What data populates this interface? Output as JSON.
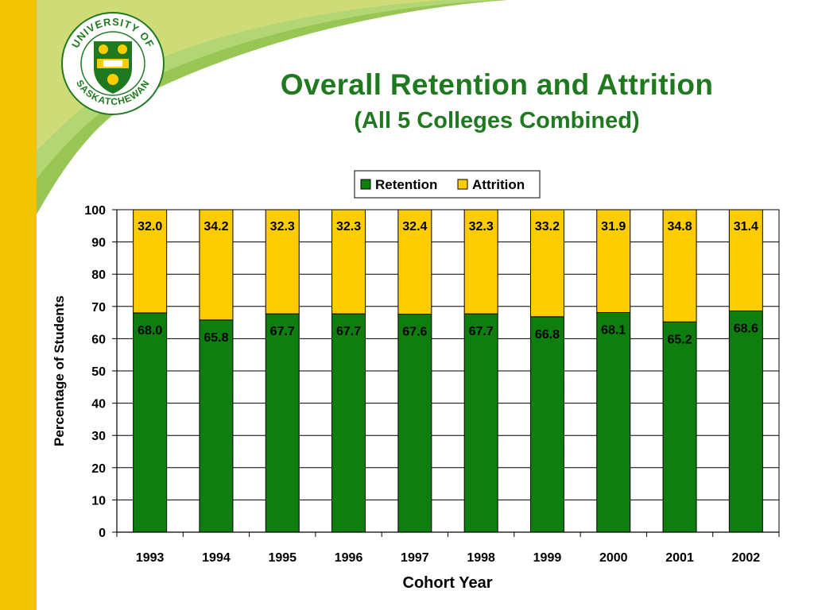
{
  "slide": {
    "title": "Overall Retention and Attrition",
    "subtitle": "(All 5 Colleges Combined)",
    "logo_text_top": "UNIVERSITY OF",
    "logo_text_bottom": "SASKATCHEWAN",
    "colors": {
      "title": "#1f7a1f",
      "band_yellow": "#f2c300",
      "band_green": "#7fb53c"
    }
  },
  "chart_data": {
    "type": "bar",
    "stacked": true,
    "categories": [
      "1993",
      "1994",
      "1995",
      "1996",
      "1997",
      "1998",
      "1999",
      "2000",
      "2001",
      "2002"
    ],
    "series": [
      {
        "name": "Retention",
        "color": "#0e7f0e",
        "values": [
          68.0,
          65.8,
          67.7,
          67.7,
          67.6,
          67.7,
          66.8,
          68.1,
          65.2,
          68.6
        ]
      },
      {
        "name": "Attrition",
        "color": "#ffcc00",
        "values": [
          32.0,
          34.2,
          32.3,
          32.3,
          32.4,
          32.3,
          33.2,
          31.9,
          34.8,
          31.4
        ]
      }
    ],
    "data_labels": {
      "Retention": [
        "68.0",
        "65.8",
        "67.7",
        "67.7",
        "67.6",
        "67.7",
        "66.8",
        "68.1",
        "65.2",
        "68.6"
      ],
      "Attrition": [
        "32.0",
        "34.2",
        "32.3",
        "32.3",
        "32.4",
        "32.3",
        "33.2",
        "31.9",
        "34.8",
        "31.4"
      ]
    },
    "xlabel": "Cohort Year",
    "ylabel": "Percentage of Students",
    "ylim": [
      0,
      100
    ],
    "yticks": [
      0,
      10,
      20,
      30,
      40,
      50,
      60,
      70,
      80,
      90,
      100
    ],
    "grid": true,
    "legend": "top-right"
  }
}
